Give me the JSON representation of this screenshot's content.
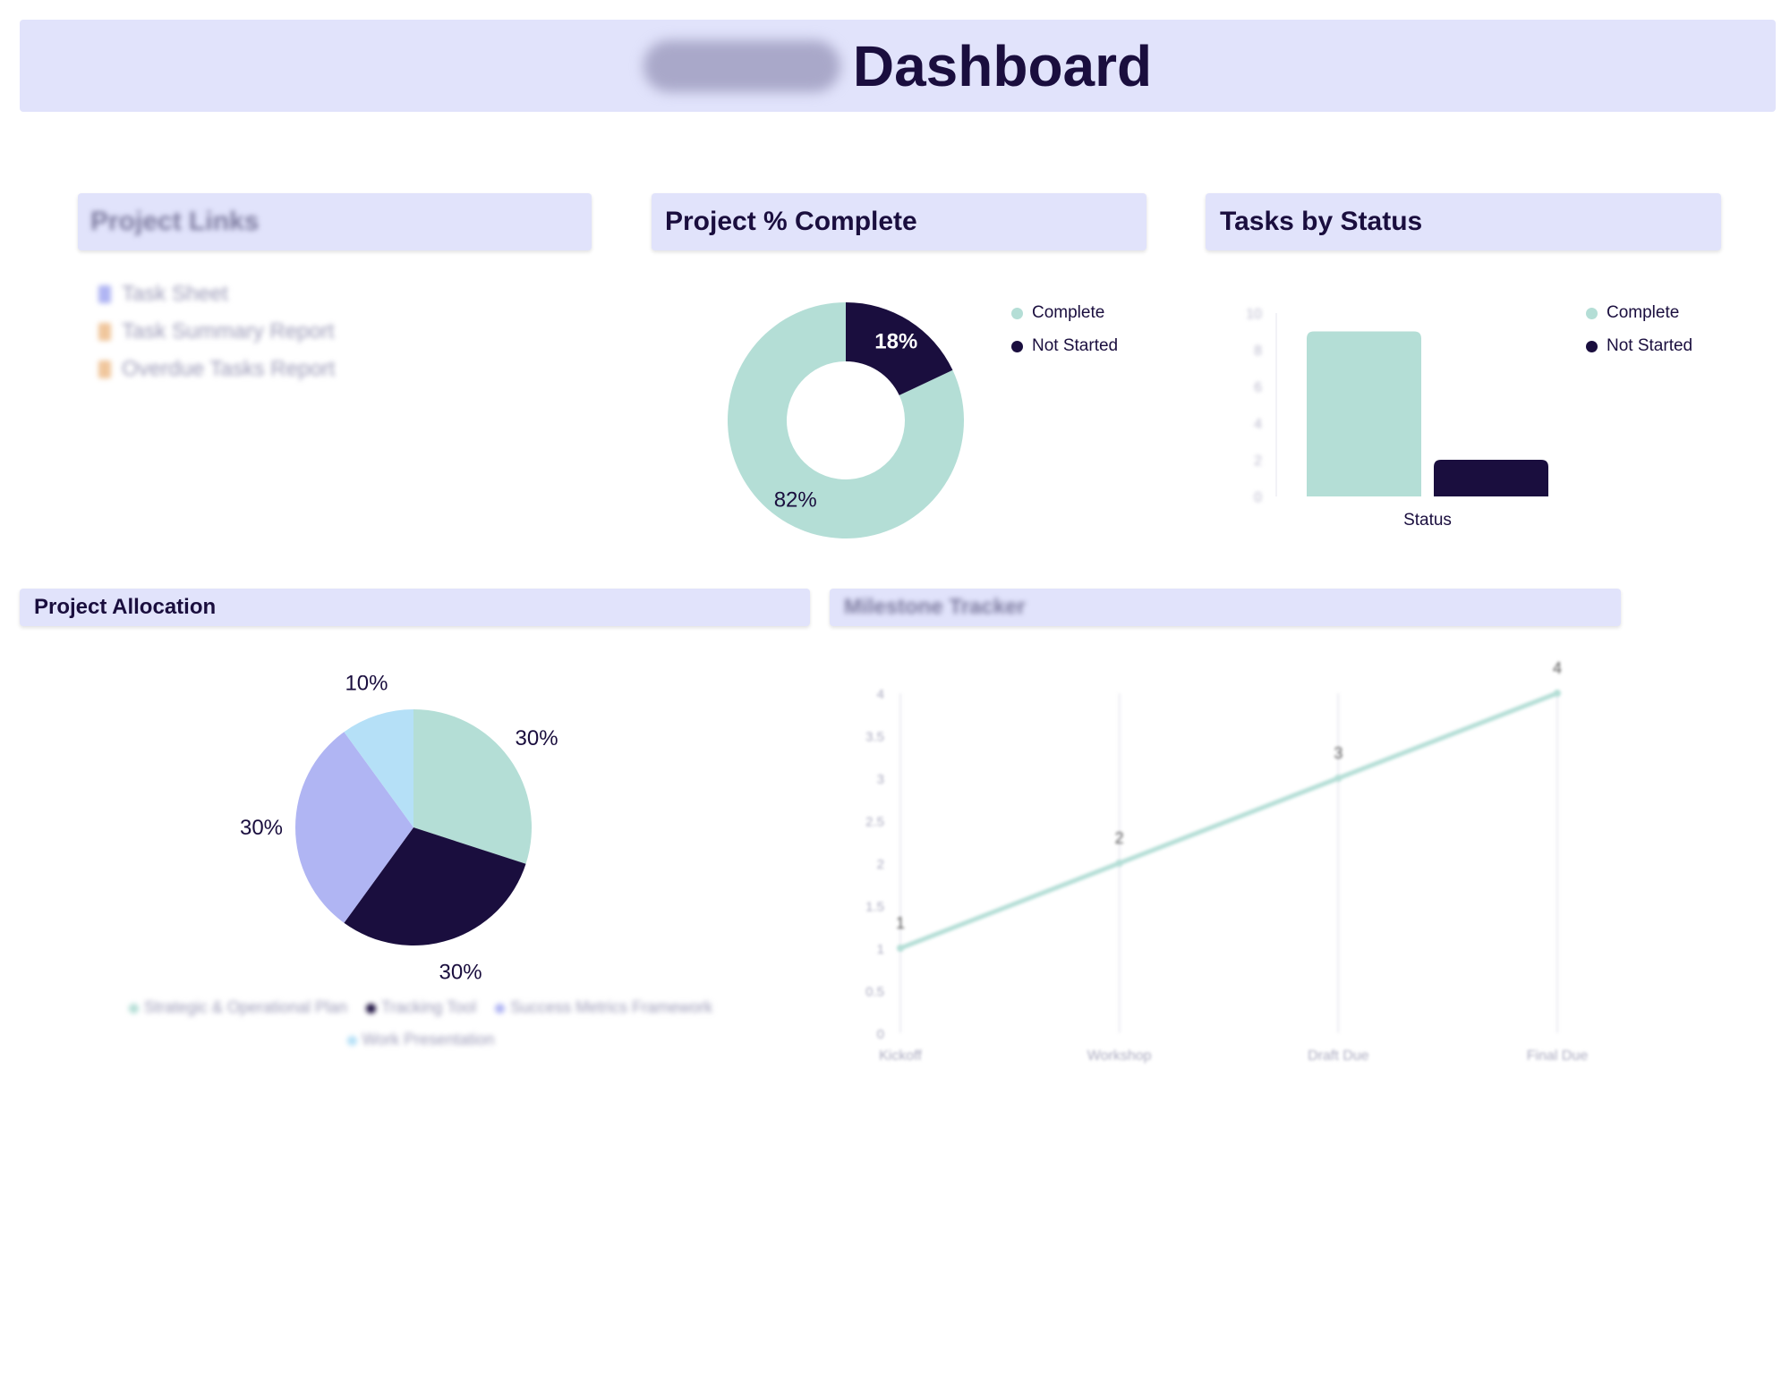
{
  "header": {
    "title": "Dashboard"
  },
  "colors": {
    "header_bg": "#e1e3fb",
    "complete": "#b4ded6",
    "not_started": "#1a0e3e",
    "periwinkle": "#b0b5f3",
    "light_blue": "#b5e0f7"
  },
  "project_links": {
    "title": "Project Links",
    "items": [
      {
        "label": "Task Sheet",
        "icon": "sheet-icon",
        "color": "#b0b5f3"
      },
      {
        "label": "Task Summary Report",
        "icon": "report-icon",
        "color": "#f0c69c"
      },
      {
        "label": "Overdue Tasks Report",
        "icon": "report-icon",
        "color": "#f0c69c"
      }
    ]
  },
  "percent_complete": {
    "title": "Project % Complete",
    "legend": [
      "Complete",
      "Not Started"
    ]
  },
  "tasks_by_status": {
    "title": "Tasks by Status",
    "legend": [
      "Complete",
      "Not Started"
    ]
  },
  "project_allocation": {
    "title": "Project Allocation",
    "legend": [
      "Strategic & Operational Plan",
      "Tracking Tool",
      "Success Metrics Framework",
      "Work Presentation"
    ]
  },
  "milestone_tracker": {
    "title": "Milestone Tracker"
  },
  "chart_data": [
    {
      "id": "percent-complete",
      "type": "pie",
      "title": "Project % Complete",
      "labels": [
        "Complete",
        "Not Started"
      ],
      "values": [
        82,
        18
      ],
      "value_labels": [
        "82%",
        "18%"
      ],
      "legend_position": "top-right"
    },
    {
      "id": "tasks-by-status",
      "type": "bar",
      "title": "Tasks by Status",
      "categories": [
        "Status"
      ],
      "series": [
        {
          "name": "Complete",
          "values": [
            9
          ]
        },
        {
          "name": "Not Started",
          "values": [
            2
          ]
        }
      ],
      "ylim": [
        0,
        10
      ],
      "yticks": [
        0,
        2,
        4,
        6,
        8,
        10
      ],
      "xlabel": "Status",
      "legend_position": "top-right"
    },
    {
      "id": "project-allocation",
      "type": "pie",
      "title": "Project Allocation",
      "labels": [
        "Strategic & Operational Plan",
        "Tracking Tool",
        "Success Metrics Framework",
        "Work Presentation"
      ],
      "values": [
        30,
        30,
        30,
        10
      ],
      "value_labels": [
        "30%",
        "30%",
        "30%",
        "10%"
      ],
      "legend_position": "bottom"
    },
    {
      "id": "milestone-tracker",
      "type": "line",
      "title": "Milestone Tracker",
      "categories": [
        "Kickoff",
        "Workshop",
        "Draft Due",
        "Final Due"
      ],
      "values": [
        1,
        2,
        3,
        4
      ],
      "ylim": [
        0,
        4
      ],
      "yticks": [
        "0",
        "0.5",
        "1",
        "1.5",
        "2",
        "2.5",
        "3",
        "3.5",
        "4"
      ]
    }
  ]
}
